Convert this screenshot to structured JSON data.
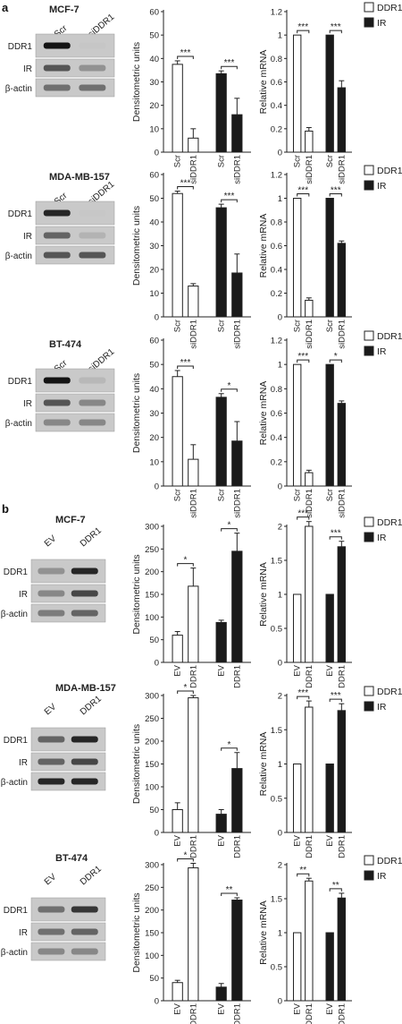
{
  "panel_labels": [
    "a",
    "b"
  ],
  "legend": {
    "open_label": "DDR1",
    "filled_label": "IR",
    "open_color": "#ffffff",
    "filled_color": "#1a1a1a"
  },
  "blot_row_labels": [
    "DDR1",
    "IR",
    "β-actin"
  ],
  "ylabels": {
    "densitometric": "Densitometric units",
    "mrna": "Relative mRNA"
  },
  "rows": [
    {
      "title": "MCF-7",
      "panel": "a",
      "lanes": [
        "Scr",
        "siDDR1"
      ],
      "bands": {
        "DDR1": [
          1.0,
          0.12
        ],
        "IR": [
          0.8,
          0.55
        ],
        "β-actin": [
          0.7,
          0.7
        ]
      }
    },
    {
      "title": "MDA-MB-157",
      "panel": "a",
      "lanes": [
        "Scr",
        "siDDR1"
      ],
      "bands": {
        "DDR1": [
          0.95,
          0.05
        ],
        "IR": [
          0.75,
          0.35
        ],
        "β-actin": [
          0.8,
          0.8
        ]
      }
    },
    {
      "title": "BT-474",
      "panel": "a",
      "lanes": [
        "Scr",
        "siDDR1"
      ],
      "bands": {
        "DDR1": [
          1.0,
          0.3
        ],
        "IR": [
          0.8,
          0.6
        ],
        "β-actin": [
          0.6,
          0.6
        ]
      }
    },
    {
      "title": "MCF-7",
      "panel": "b",
      "lanes": [
        "EV",
        "DDR1"
      ],
      "bands": {
        "DDR1": [
          0.55,
          0.95
        ],
        "IR": [
          0.6,
          0.85
        ],
        "β-actin": [
          0.65,
          0.75
        ]
      }
    },
    {
      "title": "MDA-MB-157",
      "panel": "b",
      "lanes": [
        "EV",
        "DDR1"
      ],
      "bands": {
        "DDR1": [
          0.75,
          0.95
        ],
        "IR": [
          0.75,
          0.85
        ],
        "β-actin": [
          0.95,
          0.95
        ]
      }
    },
    {
      "title": "BT-474",
      "panel": "b",
      "lanes": [
        "EV",
        "DDR1"
      ],
      "bands": {
        "DDR1": [
          0.7,
          0.9
        ],
        "IR": [
          0.7,
          0.75
        ],
        "β-actin": [
          0.6,
          0.6
        ]
      }
    }
  ],
  "chart_data": [
    {
      "type": "bar",
      "panel": "a",
      "cell_line": "MCF-7",
      "ylabel": "Densitometric units",
      "ylim": [
        0,
        60
      ],
      "yticks": [
        0,
        10,
        20,
        30,
        40,
        50,
        60
      ],
      "categories": [
        "Scr",
        "siDDR1",
        "Scr",
        "siDDR1"
      ],
      "series": [
        {
          "name": "DDR1",
          "values": [
            37.5,
            6,
            null,
            null
          ],
          "errors": [
            1.5,
            4,
            null,
            null
          ]
        },
        {
          "name": "IR",
          "values": [
            null,
            null,
            33.5,
            16
          ],
          "errors": [
            null,
            null,
            1.2,
            7
          ]
        }
      ],
      "annotations": [
        {
          "groups": "DDR1",
          "label": "***"
        },
        {
          "groups": "IR",
          "label": "***"
        }
      ]
    },
    {
      "type": "bar",
      "panel": "a",
      "cell_line": "MCF-7",
      "ylabel": "Relative mRNA",
      "ylim": [
        0,
        1.2
      ],
      "yticks": [
        0,
        0.2,
        0.4,
        0.6,
        0.8,
        1.0,
        1.2
      ],
      "categories": [
        "Scr",
        "siDDR1",
        "Scr",
        "siDDR1"
      ],
      "series": [
        {
          "name": "DDR1",
          "values": [
            1.0,
            0.18,
            null,
            null
          ],
          "errors": [
            0,
            0.03,
            null,
            null
          ]
        },
        {
          "name": "IR",
          "values": [
            null,
            null,
            1.0,
            0.55
          ],
          "errors": [
            null,
            null,
            0,
            0.06
          ]
        }
      ],
      "annotations": [
        {
          "groups": "DDR1",
          "label": "***"
        },
        {
          "groups": "IR",
          "label": "***"
        }
      ]
    },
    {
      "type": "bar",
      "panel": "a",
      "cell_line": "MDA-MB-157",
      "ylabel": "Densitometric units",
      "ylim": [
        0,
        60
      ],
      "yticks": [
        0,
        10,
        20,
        30,
        40,
        50,
        60
      ],
      "categories": [
        "Scr",
        "siDDR1",
        "Scr",
        "siDDR1"
      ],
      "series": [
        {
          "name": "DDR1",
          "values": [
            52,
            13,
            null,
            null
          ],
          "errors": [
            1,
            1,
            null,
            null
          ]
        },
        {
          "name": "IR",
          "values": [
            null,
            null,
            46,
            18.5
          ],
          "errors": [
            null,
            null,
            1.5,
            8
          ]
        }
      ],
      "annotations": [
        {
          "groups": "DDR1",
          "label": "***"
        },
        {
          "groups": "IR",
          "label": "***"
        }
      ]
    },
    {
      "type": "bar",
      "panel": "a",
      "cell_line": "MDA-MB-157",
      "ylabel": "Relative mRNA",
      "ylim": [
        0,
        1.2
      ],
      "yticks": [
        0,
        0.2,
        0.4,
        0.6,
        0.8,
        1.0,
        1.2
      ],
      "categories": [
        "Scr",
        "siDDR1",
        "Scr",
        "siDDR1"
      ],
      "series": [
        {
          "name": "DDR1",
          "values": [
            1.0,
            0.14,
            null,
            null
          ],
          "errors": [
            0,
            0.02,
            null,
            null
          ]
        },
        {
          "name": "IR",
          "values": [
            null,
            null,
            1.0,
            0.62
          ],
          "errors": [
            null,
            null,
            0,
            0.02
          ]
        }
      ],
      "annotations": [
        {
          "groups": "DDR1",
          "label": "***"
        },
        {
          "groups": "IR",
          "label": "***"
        }
      ]
    },
    {
      "type": "bar",
      "panel": "a",
      "cell_line": "BT-474",
      "ylabel": "Densitometric units",
      "ylim": [
        0,
        60
      ],
      "yticks": [
        0,
        10,
        20,
        30,
        40,
        50,
        60
      ],
      "categories": [
        "Scr",
        "siDDR1",
        "Scr",
        "siDDR1"
      ],
      "series": [
        {
          "name": "DDR1",
          "values": [
            45,
            11,
            null,
            null
          ],
          "errors": [
            2.5,
            6,
            null,
            null
          ]
        },
        {
          "name": "IR",
          "values": [
            null,
            null,
            36.5,
            18.5
          ],
          "errors": [
            null,
            null,
            1.5,
            8
          ]
        }
      ],
      "annotations": [
        {
          "groups": "DDR1",
          "label": "***"
        },
        {
          "groups": "IR",
          "label": "*"
        }
      ]
    },
    {
      "type": "bar",
      "panel": "a",
      "cell_line": "BT-474",
      "ylabel": "Relative mRNA",
      "ylim": [
        0,
        1.2
      ],
      "yticks": [
        0,
        0.2,
        0.4,
        0.6,
        0.8,
        1.0,
        1.2
      ],
      "categories": [
        "Scr",
        "siDDR1",
        "Scr",
        "siDDR1"
      ],
      "series": [
        {
          "name": "DDR1",
          "values": [
            1.0,
            0.11,
            null,
            null
          ],
          "errors": [
            0,
            0.02,
            null,
            null
          ]
        },
        {
          "name": "IR",
          "values": [
            null,
            null,
            1.0,
            0.68
          ],
          "errors": [
            null,
            null,
            0,
            0.02
          ]
        }
      ],
      "annotations": [
        {
          "groups": "DDR1",
          "label": "***"
        },
        {
          "groups": "IR",
          "label": "*"
        }
      ]
    },
    {
      "type": "bar",
      "panel": "b",
      "cell_line": "MCF-7",
      "ylabel": "Densitometric units",
      "ylim": [
        0,
        300
      ],
      "yticks": [
        0,
        50,
        100,
        150,
        200,
        250,
        300
      ],
      "categories": [
        "EV",
        "DDR1",
        "EV",
        "DDR1"
      ],
      "series": [
        {
          "name": "DDR1",
          "values": [
            60,
            168,
            null,
            null
          ],
          "errors": [
            8,
            40,
            null,
            null
          ]
        },
        {
          "name": "IR",
          "values": [
            null,
            null,
            88,
            245
          ],
          "errors": [
            null,
            null,
            5,
            40
          ]
        }
      ],
      "annotations": [
        {
          "groups": "DDR1",
          "label": "*"
        },
        {
          "groups": "IR",
          "label": "*"
        }
      ]
    },
    {
      "type": "bar",
      "panel": "b",
      "cell_line": "MCF-7",
      "ylabel": "Relative mRNA",
      "ylim": [
        0,
        2.0
      ],
      "yticks": [
        0,
        0.5,
        1.0,
        1.5,
        2.0
      ],
      "categories": [
        "EV",
        "DDR1",
        "EV",
        "DDR1"
      ],
      "series": [
        {
          "name": "DDR1",
          "values": [
            1.0,
            2.0,
            null,
            null
          ],
          "errors": [
            0,
            0.07,
            null,
            null
          ]
        },
        {
          "name": "IR",
          "values": [
            null,
            null,
            1.0,
            1.7
          ],
          "errors": [
            null,
            null,
            0,
            0.08
          ]
        }
      ],
      "annotations": [
        {
          "groups": "DDR1",
          "label": "***"
        },
        {
          "groups": "IR",
          "label": "***"
        }
      ]
    },
    {
      "type": "bar",
      "panel": "b",
      "cell_line": "MDA-MB-157",
      "ylabel": "Densitometric units",
      "ylim": [
        0,
        300
      ],
      "yticks": [
        0,
        50,
        100,
        150,
        200,
        250,
        300
      ],
      "categories": [
        "EV",
        "DDR1",
        "EV",
        "DDR1"
      ],
      "series": [
        {
          "name": "DDR1",
          "values": [
            50,
            295,
            null,
            null
          ],
          "errors": [
            15,
            5,
            null,
            null
          ]
        },
        {
          "name": "IR",
          "values": [
            null,
            null,
            40,
            140
          ],
          "errors": [
            null,
            null,
            10,
            35
          ]
        }
      ],
      "annotations": [
        {
          "groups": "DDR1",
          "label": "*"
        },
        {
          "groups": "IR",
          "label": "*"
        }
      ]
    },
    {
      "type": "bar",
      "panel": "b",
      "cell_line": "MDA-MB-157",
      "ylabel": "Relative mRNA",
      "ylim": [
        0,
        2.0
      ],
      "yticks": [
        0,
        0.5,
        1.0,
        1.5,
        2.0
      ],
      "categories": [
        "EV",
        "DDR1",
        "EV",
        "DDR1"
      ],
      "series": [
        {
          "name": "DDR1",
          "values": [
            1.0,
            1.83,
            null,
            null
          ],
          "errors": [
            0,
            0.09,
            null,
            null
          ]
        },
        {
          "name": "IR",
          "values": [
            null,
            null,
            1.0,
            1.78
          ],
          "errors": [
            null,
            null,
            0,
            0.1
          ]
        }
      ],
      "annotations": [
        {
          "groups": "DDR1",
          "label": "***"
        },
        {
          "groups": "IR",
          "label": "***"
        }
      ]
    },
    {
      "type": "bar",
      "panel": "b",
      "cell_line": "BT-474",
      "ylabel": "Densitometric units",
      "ylim": [
        0,
        300
      ],
      "yticks": [
        0,
        50,
        100,
        150,
        200,
        250,
        300
      ],
      "categories": [
        "EV",
        "DDR1",
        "EV",
        "DDR1"
      ],
      "series": [
        {
          "name": "DDR1",
          "values": [
            40,
            293,
            null,
            null
          ],
          "errors": [
            5,
            10,
            null,
            null
          ]
        },
        {
          "name": "IR",
          "values": [
            null,
            null,
            30,
            222
          ],
          "errors": [
            null,
            null,
            8,
            5
          ]
        }
      ],
      "annotations": [
        {
          "groups": "DDR1",
          "label": "*"
        },
        {
          "groups": "IR",
          "label": "**"
        }
      ]
    },
    {
      "type": "bar",
      "panel": "b",
      "cell_line": "BT-474",
      "ylabel": "Relative mRNA",
      "ylim": [
        0,
        2.0
      ],
      "yticks": [
        0,
        0.5,
        1.0,
        1.5,
        2.0
      ],
      "categories": [
        "EV",
        "DDR1",
        "EV",
        "DDR1"
      ],
      "series": [
        {
          "name": "DDR1",
          "values": [
            1.0,
            1.76,
            null,
            null
          ],
          "errors": [
            0,
            0.04,
            null,
            null
          ]
        },
        {
          "name": "IR",
          "values": [
            null,
            null,
            1.0,
            1.51
          ],
          "errors": [
            null,
            null,
            0,
            0.07
          ]
        }
      ],
      "annotations": [
        {
          "groups": "DDR1",
          "label": "**"
        },
        {
          "groups": "IR",
          "label": "**"
        }
      ]
    }
  ]
}
